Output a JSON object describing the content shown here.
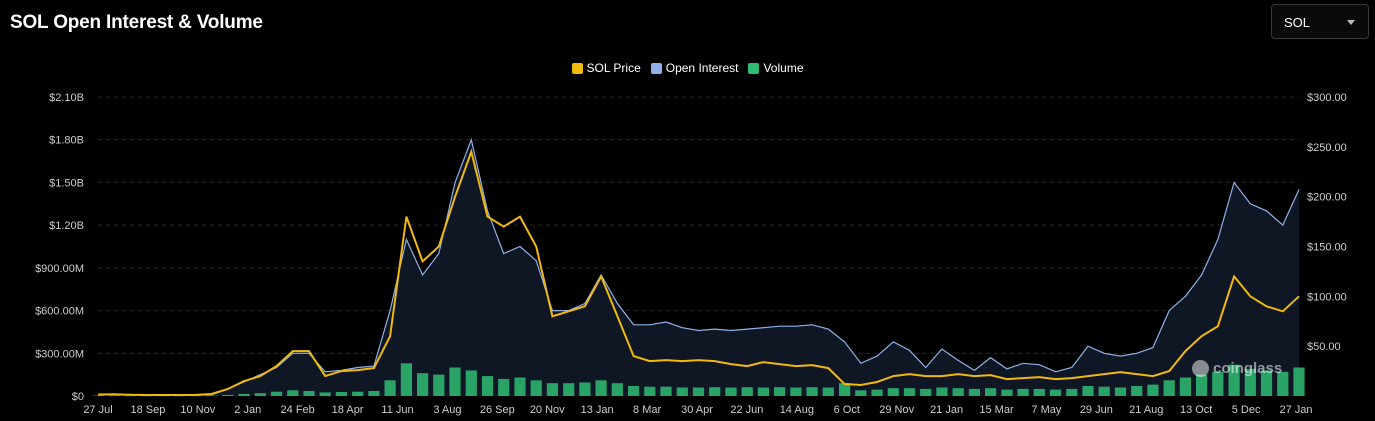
{
  "header": {
    "title": "SOL Open Interest & Volume"
  },
  "selector": {
    "value": "SOL"
  },
  "watermark": {
    "text": "coinglass"
  },
  "colors": {
    "price": "#f0b90b",
    "open_interest": "#8fb1e9",
    "volume": "#2ebd72",
    "grid": "#2a2a2a",
    "text": "#ffffff",
    "axis_text": "#cccccc"
  },
  "chart_data": {
    "type": "line",
    "title": "SOL Open Interest & Volume",
    "legend": {
      "placement": "top-center",
      "items": [
        "SOL Price",
        "Open Interest",
        "Volume"
      ]
    },
    "grid": "horizontal-dashed",
    "x_ticks": [
      "27 Jul",
      "18 Sep",
      "10 Nov",
      "2 Jan",
      "24 Feb",
      "18 Apr",
      "11 Jun",
      "3 Aug",
      "26 Sep",
      "20 Nov",
      "13 Jan",
      "8 Mar",
      "30 Apr",
      "22 Jun",
      "14 Aug",
      "6 Oct",
      "29 Nov",
      "21 Jan",
      "15 Mar",
      "7 May",
      "29 Jun",
      "21 Aug",
      "13 Oct",
      "5 Dec",
      "27 Jan"
    ],
    "y_left": {
      "ticks": [
        "$0",
        "$300.00M",
        "$600.00M",
        "$900.00M",
        "$1.20B",
        "$1.50B",
        "$1.80B",
        "$2.10B"
      ],
      "range": [
        0,
        2100000000
      ]
    },
    "y_right": {
      "ticks": [
        "$50.00",
        "$100.00",
        "$150.00",
        "$200.00",
        "$250.00",
        "$300.00"
      ],
      "range": [
        0,
        300
      ]
    },
    "series": [
      {
        "name": "Open Interest",
        "axis": "left",
        "style": "area",
        "values": [
          10000000,
          12000000,
          8000000,
          6000000,
          5000000,
          5000000,
          6000000,
          10000000,
          50000000,
          100000000,
          150000000,
          200000000,
          300000000,
          300000000,
          170000000,
          180000000,
          200000000,
          210000000,
          600000000,
          1100000000,
          850000000,
          1000000000,
          1500000000,
          1800000000,
          1300000000,
          1000000000,
          1050000000,
          950000000,
          600000000,
          600000000,
          650000000,
          850000000,
          650000000,
          500000000,
          500000000,
          520000000,
          480000000,
          460000000,
          470000000,
          460000000,
          470000000,
          480000000,
          490000000,
          490000000,
          500000000,
          470000000,
          380000000,
          230000000,
          280000000,
          380000000,
          320000000,
          200000000,
          330000000,
          250000000,
          180000000,
          270000000,
          190000000,
          230000000,
          220000000,
          170000000,
          200000000,
          350000000,
          300000000,
          280000000,
          300000000,
          340000000,
          600000000,
          700000000,
          850000000,
          1100000000,
          1500000000,
          1350000000,
          1300000000,
          1200000000,
          1450000000
        ]
      },
      {
        "name": "SOL Price",
        "axis": "right",
        "style": "line",
        "values": [
          1.5,
          1.8,
          1.2,
          1.0,
          1.0,
          1.0,
          1.1,
          2.0,
          7,
          15,
          20,
          30,
          45,
          45,
          20,
          25,
          26,
          28,
          60,
          180,
          135,
          150,
          200,
          245,
          180,
          170,
          180,
          150,
          80,
          85,
          90,
          120,
          80,
          40,
          35,
          36,
          35,
          36,
          35,
          32,
          30,
          34,
          32,
          30,
          31,
          28,
          12,
          11,
          14,
          20,
          22,
          20,
          20,
          22,
          20,
          21,
          17,
          18,
          19,
          17,
          18,
          20,
          22,
          24,
          22,
          20,
          25,
          45,
          60,
          70,
          120,
          100,
          90,
          85,
          100
        ]
      },
      {
        "name": "Volume",
        "axis": "left",
        "style": "bars",
        "values": [
          3000000,
          3000000,
          2000000,
          2000000,
          2000000,
          2000000,
          2000000,
          3000000,
          8000000,
          15000000,
          20000000,
          30000000,
          40000000,
          35000000,
          25000000,
          28000000,
          30000000,
          35000000,
          110000000,
          230000000,
          160000000,
          150000000,
          200000000,
          180000000,
          140000000,
          120000000,
          130000000,
          110000000,
          90000000,
          90000000,
          95000000,
          110000000,
          90000000,
          70000000,
          65000000,
          65000000,
          60000000,
          60000000,
          62000000,
          60000000,
          62000000,
          60000000,
          62000000,
          60000000,
          62000000,
          60000000,
          90000000,
          40000000,
          45000000,
          55000000,
          55000000,
          50000000,
          60000000,
          55000000,
          50000000,
          55000000,
          45000000,
          50000000,
          50000000,
          45000000,
          50000000,
          70000000,
          65000000,
          60000000,
          70000000,
          80000000,
          110000000,
          130000000,
          150000000,
          170000000,
          220000000,
          190000000,
          180000000,
          170000000,
          200000000
        ]
      }
    ]
  }
}
